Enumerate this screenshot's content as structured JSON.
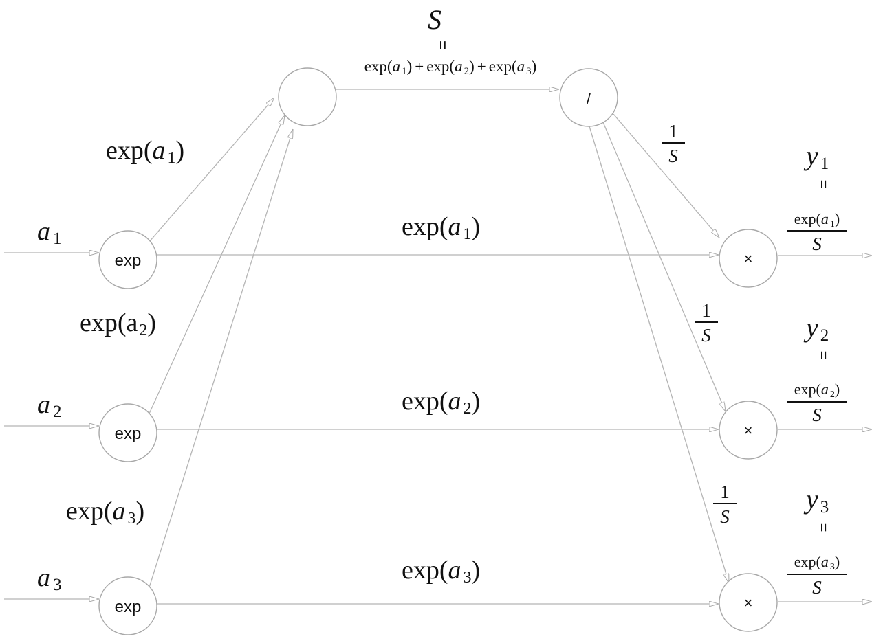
{
  "nodes": {
    "exp_label": "exp",
    "sum_label": "",
    "div_label": "/",
    "mul_label": "×"
  },
  "inputs": [
    {
      "var": "a",
      "sub": "1"
    },
    {
      "var": "a",
      "sub": "2"
    },
    {
      "var": "a",
      "sub": "3"
    }
  ],
  "exp_to_sum_labels": [
    {
      "fn": "exp(",
      "var": "a",
      "sub": "1",
      "close": ")"
    },
    {
      "fn": "exp(",
      "var": "a",
      "sub": "2",
      "close": ")"
    },
    {
      "fn": "exp(",
      "var": "a",
      "sub": "3",
      "close": ")"
    }
  ],
  "exp_to_mul_labels": [
    {
      "fn": "exp(",
      "var": "a",
      "sub": "1",
      "close": ")"
    },
    {
      "fn": "exp(",
      "var": "a",
      "sub": "2",
      "close": ")"
    },
    {
      "fn": "exp(",
      "var": "a",
      "sub": "3",
      "close": ")"
    }
  ],
  "sum_output": {
    "symbol": "S",
    "equals": "=",
    "expr": {
      "t1_fn": "exp(",
      "t1_var": "a",
      "t1_sub": "1",
      "t1_close": ")",
      "plus1": "+",
      "t2_fn": "exp(",
      "t2_var": "a",
      "t2_sub": "2",
      "t2_close": ")",
      "plus2": "+",
      "t3_fn": "exp(",
      "t3_var": "a",
      "t3_sub": "3",
      "t3_close": ")"
    }
  },
  "reciprocal_label": {
    "num": "1",
    "den": "S"
  },
  "outputs": [
    {
      "var": "y",
      "sub": "1",
      "equals": "=",
      "num_fn": "exp(",
      "num_var": "a",
      "num_sub": "1",
      "num_close": ")",
      "den": "S"
    },
    {
      "var": "y",
      "sub": "2",
      "equals": "=",
      "num_fn": "exp(",
      "num_var": "a",
      "num_sub": "2",
      "num_close": ")",
      "den": "S"
    },
    {
      "var": "y",
      "sub": "3",
      "equals": "=",
      "num_fn": "exp(",
      "num_var": "a",
      "num_sub": "3",
      "num_close": ")",
      "den": "S"
    }
  ]
}
